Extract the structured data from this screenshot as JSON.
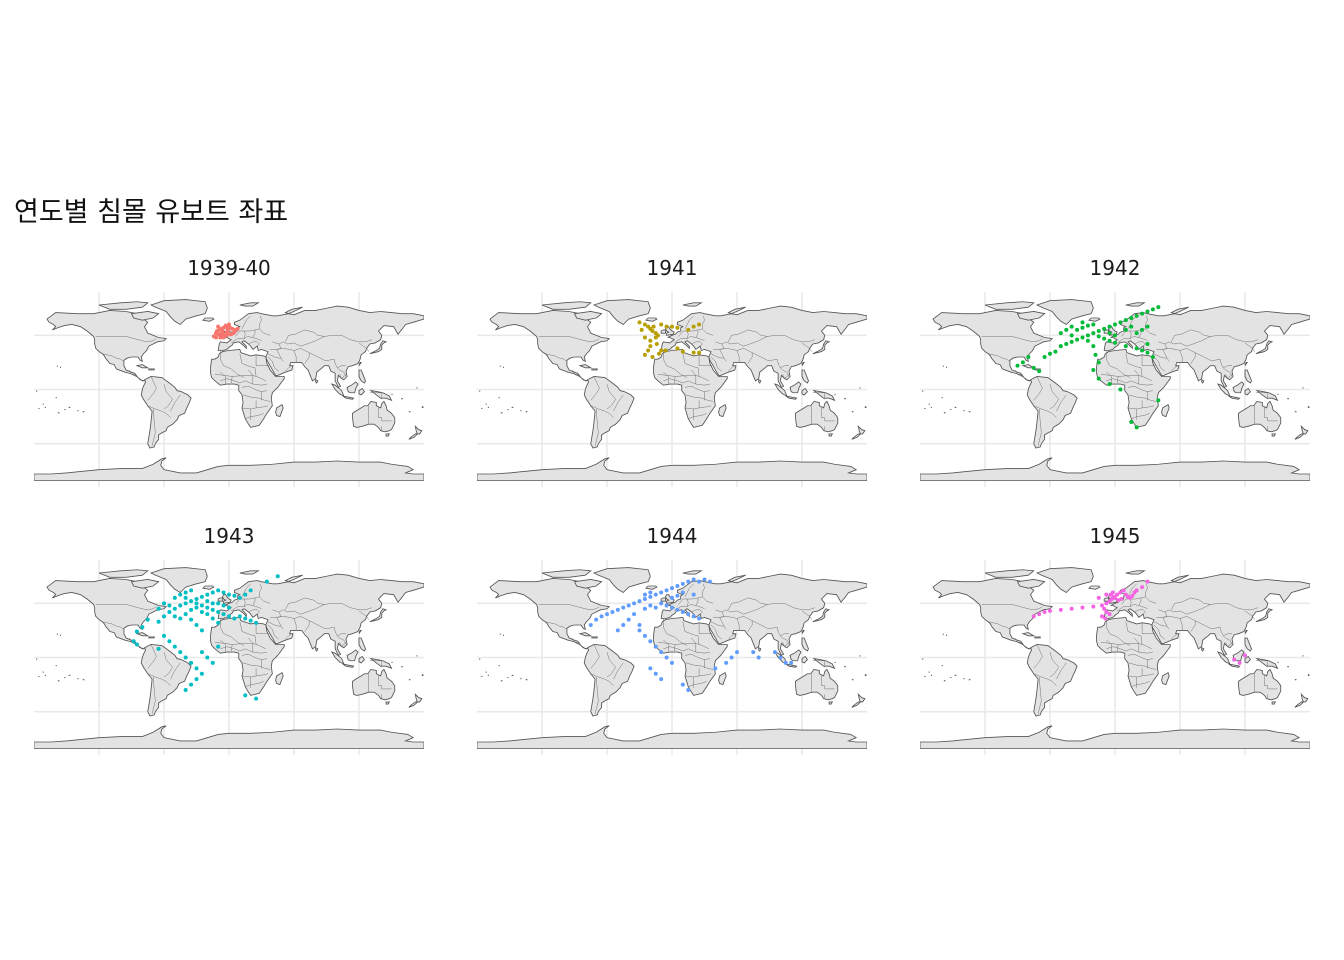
{
  "title": "연도별 침몰 유보트 좌표",
  "colors": {
    "land_fill": "#e3e3e3",
    "land_stroke": "#555555",
    "grid": "#e9e9e9"
  },
  "panels": [
    {
      "label": "1939-40",
      "color": "#f8766d",
      "points": [
        [
          -12,
          52
        ],
        [
          -10,
          51
        ],
        [
          -8,
          50
        ],
        [
          -6,
          50
        ],
        [
          -4,
          50
        ],
        [
          -2,
          50
        ],
        [
          0,
          51
        ],
        [
          2,
          51
        ],
        [
          4,
          52
        ],
        [
          5,
          53
        ],
        [
          -11,
          54
        ],
        [
          -9,
          55
        ],
        [
          -7,
          56
        ],
        [
          -5,
          57
        ],
        [
          -3,
          58
        ],
        [
          -1,
          58
        ],
        [
          1,
          57
        ],
        [
          3,
          56
        ],
        [
          6,
          55
        ],
        [
          8,
          56
        ],
        [
          -14,
          49
        ],
        [
          -12,
          48
        ],
        [
          -8,
          48
        ],
        [
          -5,
          48
        ],
        [
          -3,
          59
        ],
        [
          0,
          60
        ],
        [
          -10,
          58
        ],
        [
          -6,
          53
        ],
        [
          -2,
          53
        ],
        [
          -1,
          55
        ]
      ]
    },
    {
      "label": "1941",
      "color": "#b79f00",
      "points": [
        [
          -30,
          62
        ],
        [
          -25,
          60
        ],
        [
          -22,
          58
        ],
        [
          -20,
          56
        ],
        [
          -18,
          54
        ],
        [
          -15,
          52
        ],
        [
          -13,
          50
        ],
        [
          -15,
          48
        ],
        [
          -20,
          45
        ],
        [
          -20,
          40
        ],
        [
          -22,
          36
        ],
        [
          -25,
          32
        ],
        [
          -18,
          30
        ],
        [
          -12,
          33
        ],
        [
          -10,
          36
        ],
        [
          -6,
          36
        ],
        [
          5,
          38
        ],
        [
          10,
          35
        ],
        [
          20,
          34
        ],
        [
          25,
          34
        ],
        [
          -10,
          60
        ],
        [
          -5,
          58
        ],
        [
          0,
          58
        ],
        [
          5,
          57
        ],
        [
          15,
          55
        ],
        [
          20,
          58
        ],
        [
          25,
          60
        ],
        [
          -17,
          58
        ],
        [
          -28,
          55
        ],
        [
          -25,
          48
        ],
        [
          -14,
          42
        ]
      ]
    },
    {
      "label": "1942",
      "color": "#00ba38",
      "points": [
        [
          -80,
          30
        ],
        [
          -85,
          25
        ],
        [
          -90,
          22
        ],
        [
          -75,
          20
        ],
        [
          -70,
          17
        ],
        [
          -65,
          30
        ],
        [
          -60,
          33
        ],
        [
          -55,
          35
        ],
        [
          -50,
          40
        ],
        [
          -45,
          42
        ],
        [
          -40,
          44
        ],
        [
          -35,
          46
        ],
        [
          -30,
          48
        ],
        [
          -25,
          50
        ],
        [
          -20,
          52
        ],
        [
          -15,
          54
        ],
        [
          -10,
          56
        ],
        [
          -5,
          58
        ],
        [
          0,
          60
        ],
        [
          5,
          62
        ],
        [
          10,
          64
        ],
        [
          15,
          66
        ],
        [
          20,
          68
        ],
        [
          25,
          70
        ],
        [
          30,
          72
        ],
        [
          35,
          74
        ],
        [
          40,
          76
        ],
        [
          -35,
          55
        ],
        [
          -30,
          57
        ],
        [
          -25,
          59
        ],
        [
          -15,
          49
        ],
        [
          -10,
          47
        ],
        [
          -5,
          45
        ],
        [
          0,
          43
        ],
        [
          10,
          40
        ],
        [
          20,
          38
        ],
        [
          25,
          36
        ],
        [
          30,
          34
        ],
        [
          -40,
          50
        ],
        [
          -50,
          52
        ],
        [
          -45,
          55
        ],
        [
          -40,
          58
        ],
        [
          -30,
          62
        ],
        [
          -20,
          60
        ],
        [
          -25,
          45
        ],
        [
          -20,
          40
        ],
        [
          -18,
          32
        ],
        [
          -15,
          25
        ],
        [
          -20,
          18
        ],
        [
          -15,
          10
        ],
        [
          -5,
          5
        ],
        [
          5,
          0
        ],
        [
          15,
          -30
        ],
        [
          20,
          -35
        ],
        [
          40,
          -10
        ],
        [
          35,
          30
        ],
        [
          30,
          42
        ],
        [
          20,
          52
        ],
        [
          25,
          55
        ],
        [
          30,
          58
        ],
        [
          10,
          55
        ],
        [
          15,
          58
        ],
        [
          0,
          50
        ],
        [
          -5,
          52
        ]
      ]
    },
    {
      "label": "1943",
      "color": "#00bfc4",
      "points": [
        [
          -75,
          35
        ],
        [
          -80,
          28
        ],
        [
          -85,
          24
        ],
        [
          -65,
          33
        ],
        [
          -60,
          38
        ],
        [
          -55,
          42
        ],
        [
          -50,
          45
        ],
        [
          -45,
          48
        ],
        [
          -40,
          50
        ],
        [
          -35,
          52
        ],
        [
          -30,
          54
        ],
        [
          -25,
          56
        ],
        [
          -20,
          58
        ],
        [
          -15,
          60
        ],
        [
          -10,
          62
        ],
        [
          -5,
          60
        ],
        [
          0,
          58
        ],
        [
          -50,
          55
        ],
        [
          -45,
          58
        ],
        [
          -40,
          60
        ],
        [
          -35,
          62
        ],
        [
          -30,
          50
        ],
        [
          -25,
          48
        ],
        [
          -20,
          46
        ],
        [
          -15,
          44
        ],
        [
          -10,
          42
        ],
        [
          -5,
          40
        ],
        [
          0,
          38
        ],
        [
          5,
          36
        ],
        [
          10,
          38
        ],
        [
          15,
          36
        ],
        [
          20,
          34
        ],
        [
          25,
          32
        ],
        [
          -60,
          20
        ],
        [
          -55,
          15
        ],
        [
          -50,
          10
        ],
        [
          -45,
          5
        ],
        [
          -40,
          0
        ],
        [
          -35,
          -5
        ],
        [
          -30,
          -10
        ],
        [
          -25,
          -15
        ],
        [
          -30,
          -20
        ],
        [
          -35,
          -25
        ],
        [
          -40,
          -30
        ],
        [
          -25,
          5
        ],
        [
          -20,
          0
        ],
        [
          -15,
          -5
        ],
        [
          -10,
          10
        ],
        [
          15,
          -35
        ],
        [
          25,
          -38
        ],
        [
          -40,
          40
        ],
        [
          -35,
          44
        ],
        [
          -30,
          46
        ],
        [
          -25,
          42
        ],
        [
          -20,
          40
        ],
        [
          -15,
          36
        ],
        [
          -10,
          32
        ],
        [
          -45,
          36
        ],
        [
          -50,
          38
        ],
        [
          -55,
          48
        ],
        [
          -65,
          45
        ],
        [
          -60,
          50
        ],
        [
          10,
          55
        ],
        [
          15,
          58
        ],
        [
          20,
          62
        ],
        [
          5,
          57
        ],
        [
          -35,
          35
        ],
        [
          -30,
          30
        ],
        [
          -25,
          25
        ],
        [
          45,
          75
        ],
        [
          35,
          70
        ],
        [
          -85,
          12
        ],
        [
          -88,
          15
        ],
        [
          -65,
          8
        ],
        [
          -10,
          50
        ],
        [
          -5,
          48
        ],
        [
          0,
          46
        ],
        [
          -40,
          55
        ],
        [
          -20,
          52
        ],
        [
          -15,
          50
        ]
      ]
    },
    {
      "label": "1944",
      "color": "#619cff",
      "points": [
        [
          -75,
          30
        ],
        [
          -70,
          35
        ],
        [
          -65,
          38
        ],
        [
          -60,
          40
        ],
        [
          -55,
          42
        ],
        [
          -50,
          44
        ],
        [
          -45,
          46
        ],
        [
          -40,
          48
        ],
        [
          -35,
          50
        ],
        [
          -30,
          52
        ],
        [
          -25,
          54
        ],
        [
          -20,
          56
        ],
        [
          -15,
          58
        ],
        [
          -10,
          60
        ],
        [
          -5,
          62
        ],
        [
          0,
          64
        ],
        [
          5,
          66
        ],
        [
          10,
          68
        ],
        [
          15,
          70
        ],
        [
          20,
          72
        ],
        [
          25,
          70
        ],
        [
          30,
          72
        ],
        [
          35,
          70
        ],
        [
          -10,
          50
        ],
        [
          -5,
          48
        ],
        [
          0,
          46
        ],
        [
          5,
          44
        ],
        [
          10,
          42
        ],
        [
          15,
          40
        ],
        [
          20,
          38
        ],
        [
          25,
          36
        ],
        [
          -30,
          25
        ],
        [
          -25,
          20
        ],
        [
          -20,
          15
        ],
        [
          -15,
          10
        ],
        [
          -10,
          5
        ],
        [
          -5,
          0
        ],
        [
          0,
          -5
        ],
        [
          -20,
          -10
        ],
        [
          -15,
          -15
        ],
        [
          -10,
          -20
        ],
        [
          10,
          -25
        ],
        [
          15,
          -30
        ],
        [
          40,
          -10
        ],
        [
          50,
          -5
        ],
        [
          55,
          0
        ],
        [
          60,
          5
        ],
        [
          75,
          5
        ],
        [
          80,
          0
        ],
        [
          95,
          5
        ],
        [
          100,
          0
        ],
        [
          105,
          -5
        ],
        [
          110,
          -5
        ],
        [
          -35,
          40
        ],
        [
          -25,
          45
        ],
        [
          -20,
          48
        ],
        [
          -15,
          46
        ],
        [
          -25,
          58
        ],
        [
          -20,
          60
        ],
        [
          0,
          55
        ],
        [
          5,
          57
        ],
        [
          10,
          60
        ],
        [
          20,
          58
        ],
        [
          -40,
          35
        ],
        [
          -30,
          30
        ],
        [
          -45,
          30
        ],
        [
          -50,
          25
        ]
      ]
    },
    {
      "label": "1945",
      "color": "#f564e3",
      "points": [
        [
          -75,
          38
        ],
        [
          -70,
          40
        ],
        [
          -65,
          42
        ],
        [
          -60,
          43
        ],
        [
          -50,
          44
        ],
        [
          -40,
          45
        ],
        [
          -30,
          46
        ],
        [
          -20,
          47
        ],
        [
          -12,
          48
        ],
        [
          -8,
          50
        ],
        [
          -5,
          52
        ],
        [
          -3,
          54
        ],
        [
          -1,
          56
        ],
        [
          2,
          58
        ],
        [
          5,
          60
        ],
        [
          8,
          62
        ],
        [
          10,
          58
        ],
        [
          12,
          56
        ],
        [
          14,
          55
        ],
        [
          16,
          57
        ],
        [
          18,
          60
        ],
        [
          20,
          62
        ],
        [
          25,
          65
        ],
        [
          30,
          70
        ],
        [
          -10,
          45
        ],
        [
          -8,
          42
        ],
        [
          -5,
          40
        ],
        [
          -12,
          38
        ],
        [
          -9,
          36
        ],
        [
          0,
          55
        ],
        [
          3,
          53
        ],
        [
          6,
          54
        ],
        [
          -4,
          58
        ],
        [
          115,
          -5
        ],
        [
          110,
          -2
        ],
        [
          120,
          2
        ],
        [
          -15,
          55
        ],
        [
          -8,
          58
        ],
        [
          -2,
          60
        ]
      ]
    }
  ]
}
